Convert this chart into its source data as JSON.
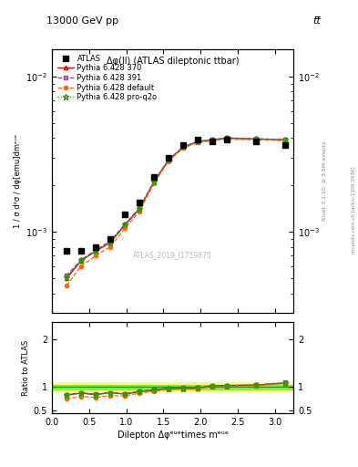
{
  "title_top": "13000 GeV pp",
  "title_top_right": "tt̅",
  "plot_title": "Δφ(ll) (ATLAS dileptonic ttbar)",
  "watermark": "ATLAS_2019_I1759875",
  "ylabel_main": "1 / σ d²σ / dφ[emu]dmᵉᵘᵉ",
  "ylabel_ratio": "Ratio to ATLAS",
  "xlabel": "Dilepton Δφᵉᵘᵉtimes mᵉᵘᵉ",
  "right_label_top": "Rivet 3.1.10, ≥ 3.5M events",
  "right_label_bot": "mcplots.cern.ch [arXiv:1306.3436]",
  "x_data": [
    0.196,
    0.393,
    0.589,
    0.785,
    0.982,
    1.178,
    1.374,
    1.571,
    1.767,
    1.963,
    2.16,
    2.356,
    2.749,
    3.142
  ],
  "atlas_y": [
    0.00075,
    0.00075,
    0.0008,
    0.0009,
    0.0013,
    0.00155,
    0.00225,
    0.003,
    0.0036,
    0.0039,
    0.0038,
    0.0039,
    0.0038,
    0.0036
  ],
  "py370_y": [
    0.0005,
    0.00065,
    0.00075,
    0.00085,
    0.0011,
    0.0014,
    0.0021,
    0.0029,
    0.0035,
    0.0038,
    0.0039,
    0.004,
    0.00395,
    0.0039
  ],
  "py391_y": [
    0.00052,
    0.00066,
    0.00076,
    0.00087,
    0.00112,
    0.00142,
    0.00212,
    0.00292,
    0.00352,
    0.00382,
    0.00392,
    0.00402,
    0.00397,
    0.00392
  ],
  "pydef_y": [
    0.00045,
    0.0006,
    0.0007,
    0.0008,
    0.00105,
    0.00135,
    0.00205,
    0.00285,
    0.00345,
    0.00375,
    0.00385,
    0.00395,
    0.0039,
    0.00385
  ],
  "pyq2o_y": [
    0.00051,
    0.000655,
    0.000755,
    0.000855,
    0.00111,
    0.00141,
    0.00211,
    0.00291,
    0.00351,
    0.00381,
    0.00391,
    0.00401,
    0.00396,
    0.00391
  ],
  "ratio_py370": [
    0.83,
    0.87,
    0.84,
    0.88,
    0.85,
    0.9,
    0.93,
    0.97,
    0.97,
    0.97,
    1.03,
    1.03,
    1.04,
    1.08
  ],
  "ratio_py391": [
    0.84,
    0.88,
    0.85,
    0.88,
    0.86,
    0.91,
    0.94,
    0.97,
    0.98,
    0.98,
    1.03,
    1.03,
    1.04,
    1.09
  ],
  "ratio_pydef": [
    0.75,
    0.8,
    0.78,
    0.82,
    0.81,
    0.87,
    0.91,
    0.95,
    0.96,
    0.96,
    1.01,
    1.01,
    1.03,
    1.07
  ],
  "ratio_pyq2o": [
    0.84,
    0.87,
    0.84,
    0.88,
    0.85,
    0.91,
    0.94,
    0.97,
    0.97,
    0.98,
    1.03,
    1.03,
    1.04,
    1.08
  ],
  "color_py370": "#cc0000",
  "color_py391": "#993399",
  "color_pydef": "#ff6600",
  "color_pyq2o": "#339900",
  "color_atlas": "#000000",
  "band_yellow": "#ffff00",
  "band_green": "#00cc00",
  "xlim": [
    0,
    3.25
  ],
  "ylim_main": [
    0.0003,
    0.015
  ],
  "ylim_ratio": [
    0.45,
    2.35
  ]
}
